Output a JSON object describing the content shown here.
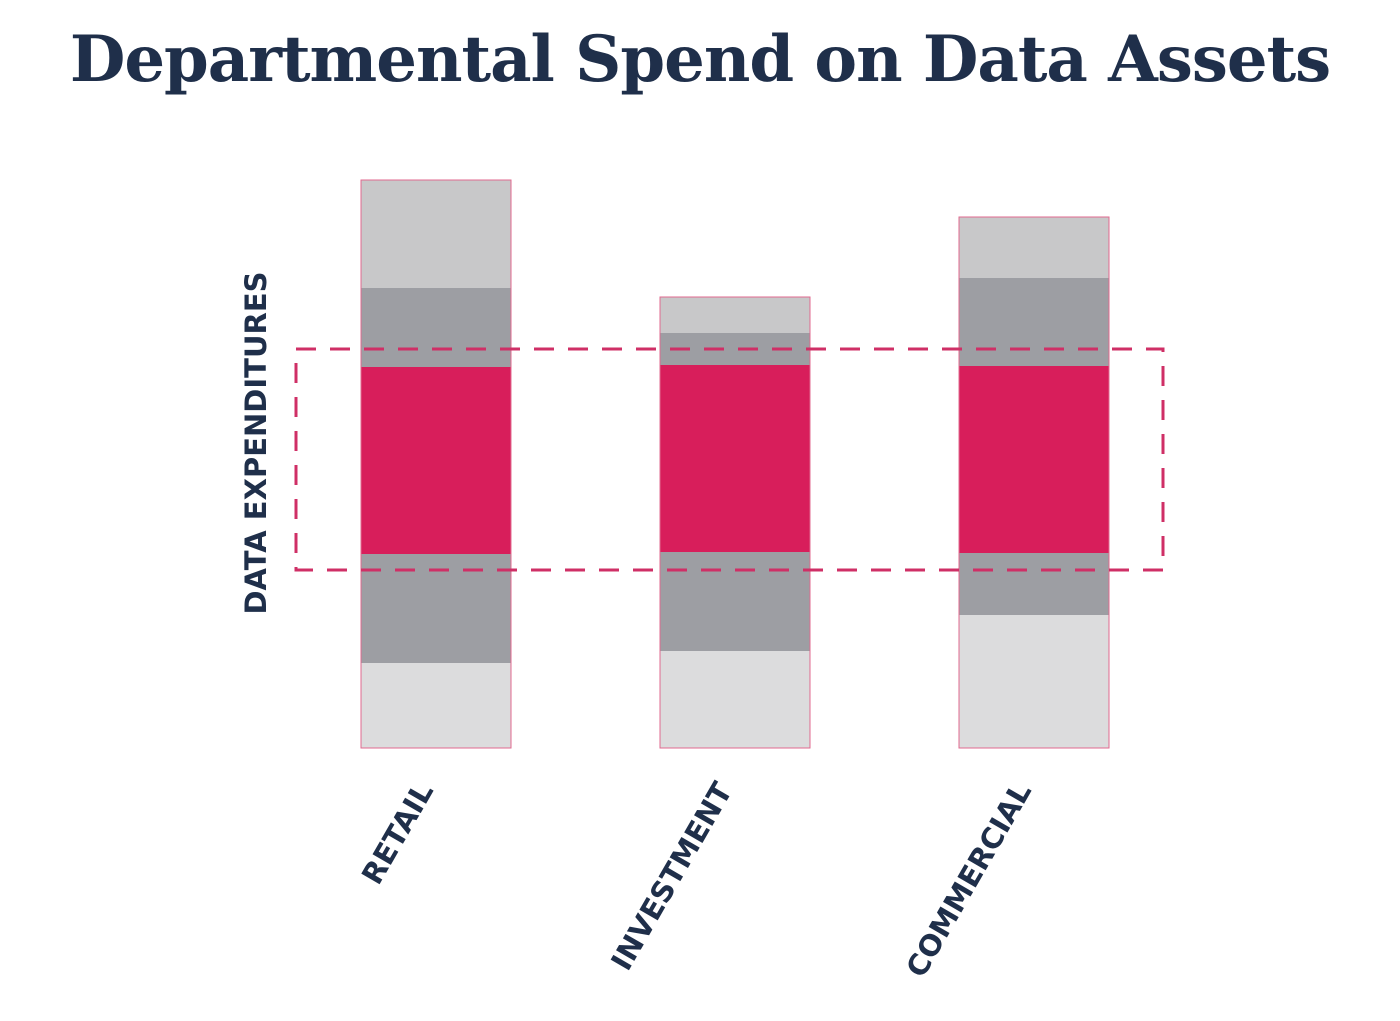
{
  "title": "Departmental Spend on Data Assets",
  "colors": {
    "title": "#1f2f4a",
    "highlight": "#d81e5b",
    "segment_dark": "#9d9ea3",
    "segment_light": "#c8c8c9",
    "segment_lightest": "#dcdcdd",
    "outline": "#e06a8f",
    "dashed_box": "#cf2f66"
  },
  "chart_data": {
    "type": "bar",
    "stacked": true,
    "ylabel": "DATA EXPENDITURES",
    "xlabel": "",
    "categories": [
      "RETAIL",
      "INVESTMENT",
      "COMMERCIAL"
    ],
    "series": [
      {
        "values": [
          85,
          97,
          133
        ],
        "color": "segment_lightest"
      },
      {
        "values": [
          109,
          99,
          62
        ],
        "color": "segment_dark"
      },
      {
        "values": [
          187,
          187,
          187
        ],
        "color": "highlight"
      },
      {
        "values": [
          79,
          32,
          88
        ],
        "color": "segment_dark"
      },
      {
        "values": [
          108,
          36,
          61
        ],
        "color": "segment_light"
      }
    ],
    "highlight_band": {
      "from": 178,
      "to": 399
    },
    "ylim": [
      0,
      568
    ],
    "y_ticks_shown": false,
    "grid": false,
    "legend": false
  }
}
